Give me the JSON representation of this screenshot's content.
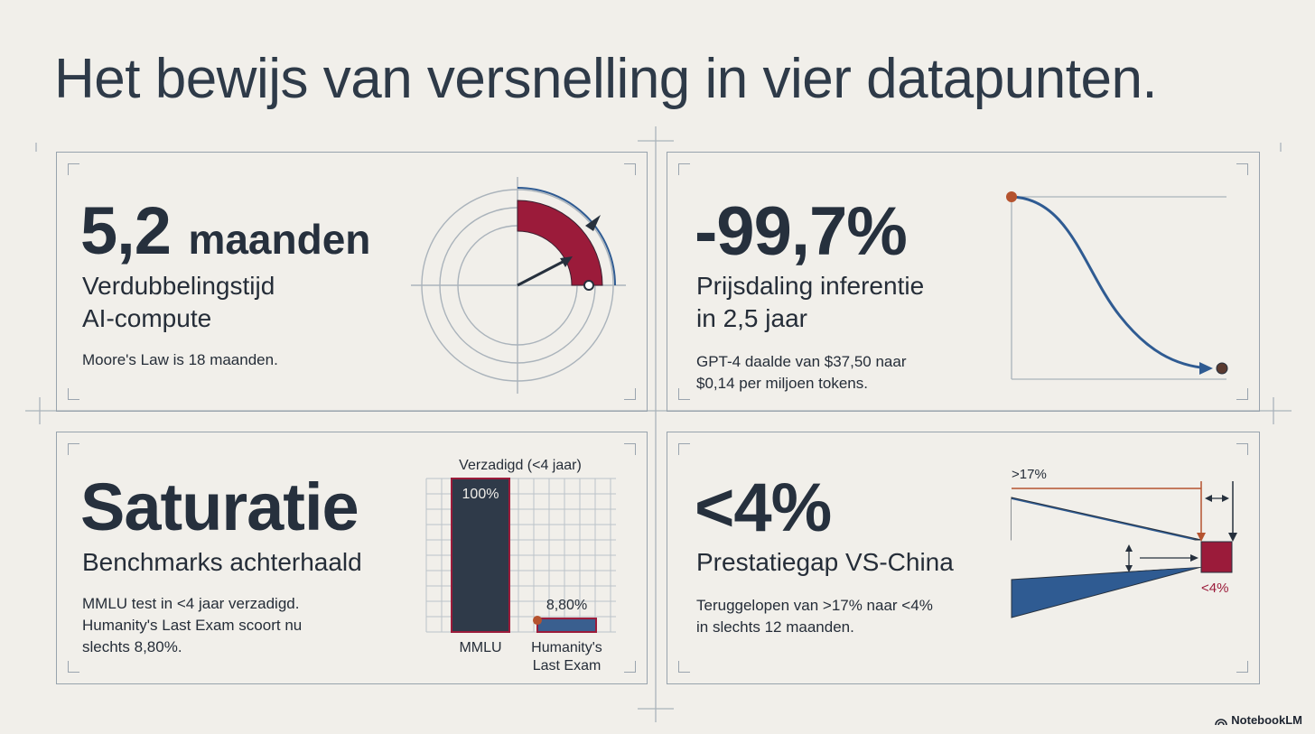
{
  "page": {
    "title": "Het bewijs van versnelling in vier datapunten.",
    "brand": "NotebookLM"
  },
  "cards": {
    "compute": {
      "headline_number": "5,2",
      "headline_unit": "maanden",
      "subtitle_line1": "Verdubbelingstijd",
      "subtitle_line2": "AI-compute",
      "note": "Moore's Law is 18 maanden."
    },
    "price": {
      "headline": "-99,7%",
      "subtitle_line1": "Prijsdaling inferentie",
      "subtitle_line2": "in 2,5 jaar",
      "note_line1": "GPT-4 daalde van $37,50 naar",
      "note_line2": "$0,14 per miljoen tokens."
    },
    "saturation": {
      "headline": "Saturatie",
      "subtitle": "Benchmarks achterhaald",
      "note_line1": "MMLU test in <4 jaar verzadigd.",
      "note_line2": "Humanity's Last Exam scoort nu",
      "note_line3": "slechts 8,80%."
    },
    "gap": {
      "headline": "<4%",
      "subtitle": "Prestatiegap VS-China",
      "note_line1": "Teruggelopen van >17% naar <4%",
      "note_line2": "in slechts 12 maanden.",
      "label_start": ">17%",
      "label_end": "<4%"
    }
  },
  "chart_data": {
    "type": "bar",
    "title": "Verzadigd (<4 jaar)",
    "categories": [
      "MMLU",
      "Humanity's Last Exam"
    ],
    "category_label_lines": [
      [
        "MMLU"
      ],
      [
        "Humanity's",
        "Last Exam"
      ]
    ],
    "values": [
      100,
      8.8
    ],
    "value_labels": [
      "100%",
      "8,80%"
    ],
    "ylim": [
      0,
      100
    ],
    "grid": true,
    "colors": {
      "bar": "#2f3a49",
      "bar_highlight": "#3a5f8f",
      "outline": "#9b1b3a",
      "dot": "#b5532f"
    }
  },
  "colors": {
    "background": "#f1efea",
    "navy": "#2f3a49",
    "blue": "#2f5b92",
    "crimson": "#9b1b3a",
    "orange": "#b5532f",
    "frame": "#98a3ad"
  }
}
